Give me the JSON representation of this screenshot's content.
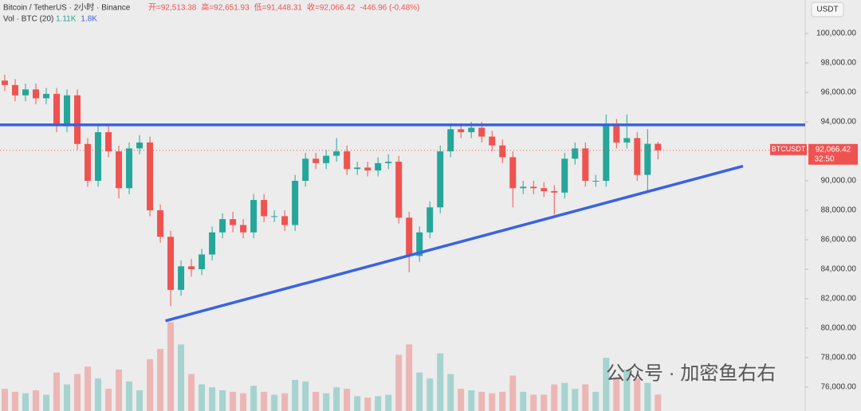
{
  "chart_data": {
    "type": "candlestick",
    "title": "Bitcoin / TetherUS · 2小时 · Binance",
    "header_items": [
      "开=92,513.38",
      "高=92,651.93",
      "低=91,448.31",
      "收=92,066.42",
      "-446.96 (-0.48%)"
    ],
    "volume_title": "Vol · BTC (20)",
    "volume_items": [
      "1.11K",
      "1.8K"
    ],
    "currency": "USDT",
    "symbol": "BTCUSDT",
    "last_price": {
      "value": 92066.42,
      "label": "92,066.42"
    },
    "countdown": "32:50",
    "watermark": "公众号 · 加密鱼右右",
    "up_color": "#26a69a",
    "down_color": "#ef5350",
    "line_color": "#3a63e0",
    "xlim": [
      -0.46,
      77.2
    ],
    "ylim": [
      74380,
      102270
    ],
    "yticks": [
      {
        "value": 76000,
        "label": "76,000.00"
      },
      {
        "value": 78000,
        "label": "78,000.00"
      },
      {
        "value": 80000,
        "label": "80,000.00"
      },
      {
        "value": 82000,
        "label": "82,000.00"
      },
      {
        "value": 84000,
        "label": "84,000.00"
      },
      {
        "value": 86000,
        "label": "86,000.00"
      },
      {
        "value": 88000,
        "label": "88,000.00"
      },
      {
        "value": 90000,
        "label": "90,000.00"
      },
      {
        "value": 92000,
        "label": "92,000.00"
      },
      {
        "value": 94000,
        "label": "94,000.00"
      },
      {
        "value": 96000,
        "label": "96,000.00"
      },
      {
        "value": 98000,
        "label": "98,000.00"
      },
      {
        "value": 100000,
        "label": "100,000.00"
      }
    ],
    "open": [
      96800,
      96500,
      95800,
      96200,
      95600,
      95900,
      93700,
      95800,
      92500,
      90000,
      93300,
      92000,
      89500,
      92200,
      92600,
      88000,
      86200,
      82600,
      84200,
      84000,
      85000,
      86500,
      87400,
      87000,
      86500,
      88700,
      87600,
      87600,
      87000,
      90000,
      91500,
      91200,
      91700,
      92000,
      90800,
      90900,
      90700,
      91200,
      91300,
      87500,
      84900,
      86500,
      88200,
      92000,
      93500,
      93300,
      93600,
      93000,
      92400,
      91600,
      89500,
      89600,
      89500,
      89300,
      89200,
      91500,
      92200,
      90000,
      90000,
      93800,
      92600,
      92900,
      90400,
      92513.38
    ],
    "high": [
      97200,
      96900,
      96600,
      96600,
      96300,
      96300,
      96200,
      96200,
      92900,
      93700,
      93700,
      92400,
      92600,
      93100,
      93000,
      88400,
      86600,
      84600,
      84700,
      85400,
      86900,
      87800,
      87900,
      87400,
      89100,
      89100,
      88000,
      88000,
      90400,
      91900,
      91900,
      92100,
      92900,
      92400,
      91300,
      91300,
      91600,
      91800,
      91700,
      87900,
      86900,
      88600,
      92400,
      93900,
      93900,
      94000,
      94000,
      93400,
      92800,
      92000,
      90000,
      90000,
      89900,
      89700,
      91900,
      92600,
      92600,
      90400,
      94500,
      94200,
      94500,
      93300,
      93500,
      92651.93
    ],
    "low": [
      96100,
      95400,
      95400,
      95200,
      95200,
      93300,
      93300,
      92100,
      89600,
      89600,
      91600,
      88800,
      89100,
      91800,
      87600,
      85800,
      81500,
      82200,
      83500,
      83600,
      84600,
      86100,
      86500,
      86100,
      86100,
      87200,
      87200,
      86600,
      86600,
      89600,
      90800,
      90800,
      91300,
      90400,
      90400,
      90300,
      90300,
      90800,
      87100,
      83800,
      84500,
      86100,
      87800,
      91600,
      92900,
      92900,
      92600,
      92000,
      91200,
      88200,
      89100,
      89100,
      88900,
      87700,
      88800,
      91100,
      89600,
      89600,
      89600,
      92200,
      92200,
      90000,
      89300,
      91448.31
    ],
    "close": [
      96500,
      95800,
      96200,
      95600,
      95900,
      93700,
      95800,
      92500,
      90000,
      93300,
      92000,
      89500,
      92200,
      92600,
      88000,
      86200,
      82600,
      84200,
      84000,
      85000,
      86500,
      87400,
      87000,
      86500,
      88700,
      87600,
      87600,
      87000,
      90000,
      91500,
      91200,
      91700,
      92000,
      90800,
      90900,
      90700,
      91200,
      91300,
      87500,
      84900,
      86500,
      88200,
      92000,
      93500,
      93300,
      93600,
      93000,
      92400,
      91600,
      89500,
      89600,
      89500,
      89300,
      89200,
      91500,
      92200,
      90000,
      90000,
      93800,
      92600,
      92900,
      90400,
      92513.38,
      92066.42
    ],
    "volume": [
      1500,
      1300,
      1200,
      1400,
      1100,
      2600,
      1800,
      2500,
      3000,
      2200,
      1500,
      2800,
      2000,
      1400,
      3500,
      4200,
      6000,
      4500,
      2500,
      1800,
      1600,
      1400,
      1300,
      1200,
      1700,
      1300,
      1100,
      1200,
      2100,
      2000,
      1300,
      1200,
      1600,
      1500,
      1000,
      900,
      1000,
      1100,
      3800,
      4500,
      2600,
      2200,
      3900,
      2500,
      1500,
      1400,
      1300,
      1200,
      1300,
      2400,
      1300,
      1100,
      1100,
      1800,
      1900,
      1500,
      1800,
      1300,
      3600,
      2300,
      2800,
      2200,
      1900,
      1110
    ],
    "volume_lim": [
      0,
      7000
    ],
    "trendlines": [
      {
        "x": [
          -0.46,
          77.2
        ],
        "y": [
          93800,
          93800
        ]
      },
      {
        "x": [
          15.5,
          71.2
        ],
        "y": [
          80500,
          91000
        ]
      }
    ]
  }
}
